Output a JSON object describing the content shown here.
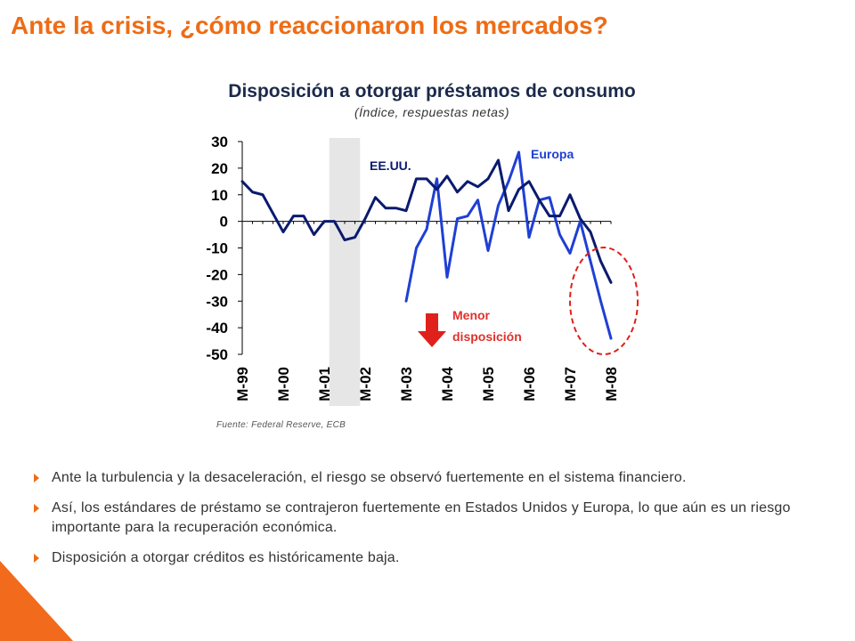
{
  "slide": {
    "title": "Ante la crisis, ¿cómo reaccionaron los mercados?",
    "bullets": [
      "Ante la turbulencia y la desaceleración, el riesgo se observó fuertemente en el sistema financiero.",
      "Así, los estándares de préstamo se contrajeron fuertemente en Estados Unidos y Europa, lo que aún es un riesgo importante para la recuperación económica.",
      "Disposición a otorgar créditos es históricamente baja."
    ],
    "source": "Fuente: Federal Reserve, ECB"
  },
  "chart_data": {
    "type": "line",
    "title": "Disposición a otorgar préstamos de consumo",
    "subtitle": "(Índice, respuestas netas)",
    "ylim": [
      -50,
      30
    ],
    "yticks": [
      30,
      20,
      10,
      0,
      -10,
      -20,
      -30,
      -40,
      -50
    ],
    "x_labels": [
      "M-99",
      "M-00",
      "M-01",
      "M-02",
      "M-03",
      "M-04",
      "M-05",
      "M-06",
      "M-07",
      "M-08"
    ],
    "x_index_range": [
      0,
      36
    ],
    "shaded_period": {
      "from": 8.5,
      "to": 11.5
    },
    "series": [
      {
        "name": "EE.UU.",
        "color": "#0a1a6e",
        "x": [
          0,
          1,
          2,
          3,
          4,
          5,
          6,
          7,
          8,
          9,
          10,
          11,
          12,
          13,
          14,
          15,
          16,
          17,
          18,
          19,
          20,
          21,
          22,
          23,
          24,
          25,
          26,
          27,
          28,
          29,
          30,
          31,
          32,
          33,
          34,
          35,
          36
        ],
        "values": [
          15,
          11,
          10,
          3,
          -4,
          2,
          2,
          -5,
          0,
          0,
          -7,
          -6,
          1,
          9,
          5,
          5,
          4,
          16,
          16,
          12,
          17,
          11,
          15,
          13,
          16,
          23,
          4,
          12,
          15,
          8,
          2,
          2,
          10,
          1,
          -4,
          -15,
          -23
        ]
      },
      {
        "name": "Europa",
        "color": "#1f3fd4",
        "x": [
          16,
          17,
          18,
          19,
          20,
          21,
          22,
          23,
          24,
          25,
          26,
          27,
          28,
          29,
          30,
          31,
          32,
          33,
          34,
          35,
          36
        ],
        "values": [
          -30,
          -10,
          -3,
          16,
          -21,
          1,
          2,
          8,
          -11,
          6,
          15,
          26,
          -6,
          8,
          9,
          -5,
          -12,
          0,
          -15,
          -30,
          -44
        ]
      }
    ],
    "annotation": "Menor disposición"
  }
}
